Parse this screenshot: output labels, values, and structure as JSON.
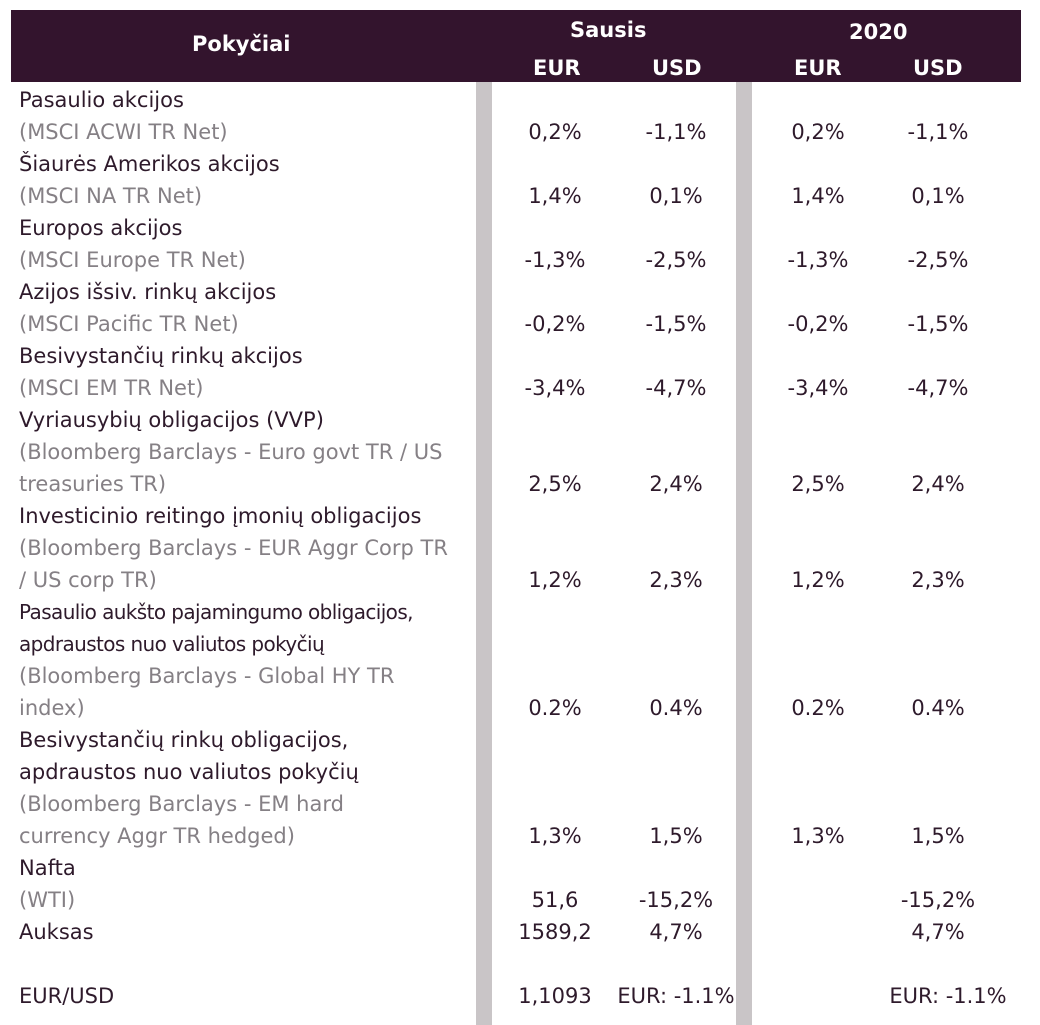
{
  "header": {
    "title": "Pokyčiai",
    "group1": "Sausis",
    "group2": "2020",
    "cur1": "EUR",
    "cur2": "USD",
    "cur3": "EUR",
    "cur4": "USD"
  },
  "colors": {
    "header_bg": "#33142d",
    "separator": "#c9c5c7",
    "text": "#2e1a2b",
    "subtext": "#858085"
  },
  "rows": [
    {
      "name": "Pasaulio akcijos",
      "index": "(MSCI ACWI TR Net)",
      "v": [
        "0,2%",
        "-1,1%",
        "0,2%",
        "-1,1%"
      ]
    },
    {
      "name": "Šiaurės Amerikos akcijos",
      "index": "(MSCI NA TR Net)",
      "v": [
        "1,4%",
        "0,1%",
        "1,4%",
        "0,1%"
      ]
    },
    {
      "name": "Europos akcijos",
      "index": "(MSCI Europe TR Net)",
      "v": [
        "-1,3%",
        "-2,5%",
        "-1,3%",
        "-2,5%"
      ]
    },
    {
      "name": "Azijos išsiv. rinkų akcijos",
      "index": "(MSCI Pacific TR Net)",
      "v": [
        "-0,2%",
        "-1,5%",
        "-0,2%",
        "-1,5%"
      ]
    },
    {
      "name": "Besivystančių rinkų akcijos",
      "index": "(MSCI EM TR Net)",
      "v": [
        "-3,4%",
        "-4,7%",
        "-3,4%",
        "-4,7%"
      ]
    },
    {
      "name": "Vyriausybių obligacijos (VVP)",
      "index": "(Bloomberg Barclays - Euro govt TR / US treasuries TR)",
      "v": [
        "2,5%",
        "2,4%",
        "2,5%",
        "2,4%"
      ]
    },
    {
      "name": "Investicinio reitingo įmonių obligacijos",
      "index": "(Bloomberg Barclays - EUR Aggr Corp TR / US corp TR)",
      "v": [
        "1,2%",
        "2,3%",
        "1,2%",
        "2,3%"
      ]
    },
    {
      "name": "Pasaulio aukšto pajamingumo obligacijos, apdraustos nuo valiutos pokyčių",
      "index": "(Bloomberg Barclays - Global HY TR index)",
      "v": [
        "0.2%",
        "0.4%",
        "0.2%",
        "0.4%"
      ]
    },
    {
      "name": "Besivystančių rinkų obligacijos, apdraustos nuo valiutos pokyčių",
      "index": "(Bloomberg Barclays - EM hard currency Aggr TR hedged)",
      "v": [
        "1,3%",
        "1,5%",
        "1,3%",
        "1,5%"
      ]
    },
    {
      "name": "Nafta",
      "index": "(WTI)",
      "v": [
        "51,6",
        "-15,2%",
        "",
        "-15,2%"
      ]
    },
    {
      "name": "Auksas",
      "index": "",
      "v": [
        "1589,2",
        "4,7%",
        "",
        "4,7%"
      ]
    },
    {
      "name": "EUR/USD",
      "index": "",
      "v": [
        "1,1093",
        "EUR: -1.1%",
        "",
        "EUR: -1.1%"
      ]
    }
  ]
}
